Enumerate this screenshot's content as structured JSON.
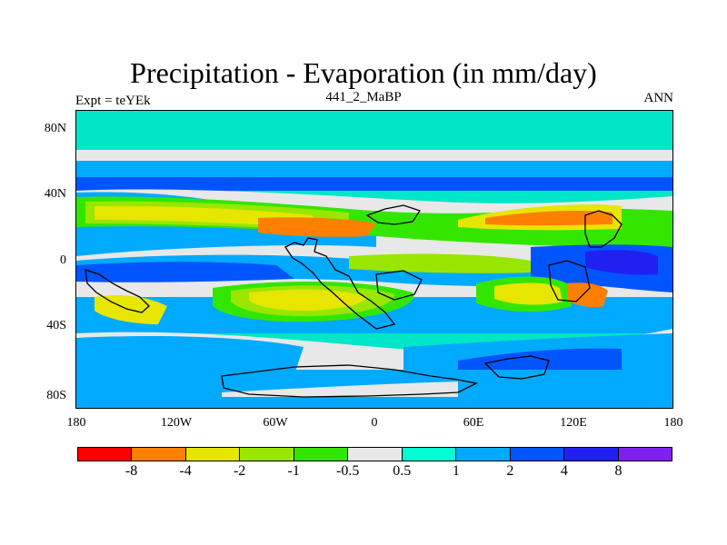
{
  "title": "Precipitation - Evaporation (in mm/day)",
  "left_label": "Expt = teYEk",
  "center_label": "441_2_MaBP",
  "right_label": "ANN",
  "y_ticks": [
    "80N",
    "40N",
    "0",
    "40S",
    "80S"
  ],
  "x_ticks": [
    "180",
    "120W",
    "60W",
    "0",
    "60E",
    "120E",
    "180"
  ],
  "colorbar": {
    "colors": [
      "#ff0000",
      "#ff8000",
      "#e6e600",
      "#99e600",
      "#33e600",
      "#e8e8e8",
      "#00ffd2",
      "#00aaff",
      "#0055ff",
      "#2020f0",
      "#8020f0"
    ],
    "labels": [
      "-8",
      "-4",
      "-2",
      "-1",
      "-0.5",
      "0.5",
      "1",
      "2",
      "4",
      "8"
    ]
  },
  "palette": {
    "background": "#00e6c8",
    "neutral": "#e8e8e8",
    "light_blue": "#00aaff",
    "blue": "#0055ff",
    "dark_blue": "#2020f0",
    "green": "#33e600",
    "lime": "#99e600",
    "yellow": "#e6e600",
    "orange": "#ff8000"
  }
}
